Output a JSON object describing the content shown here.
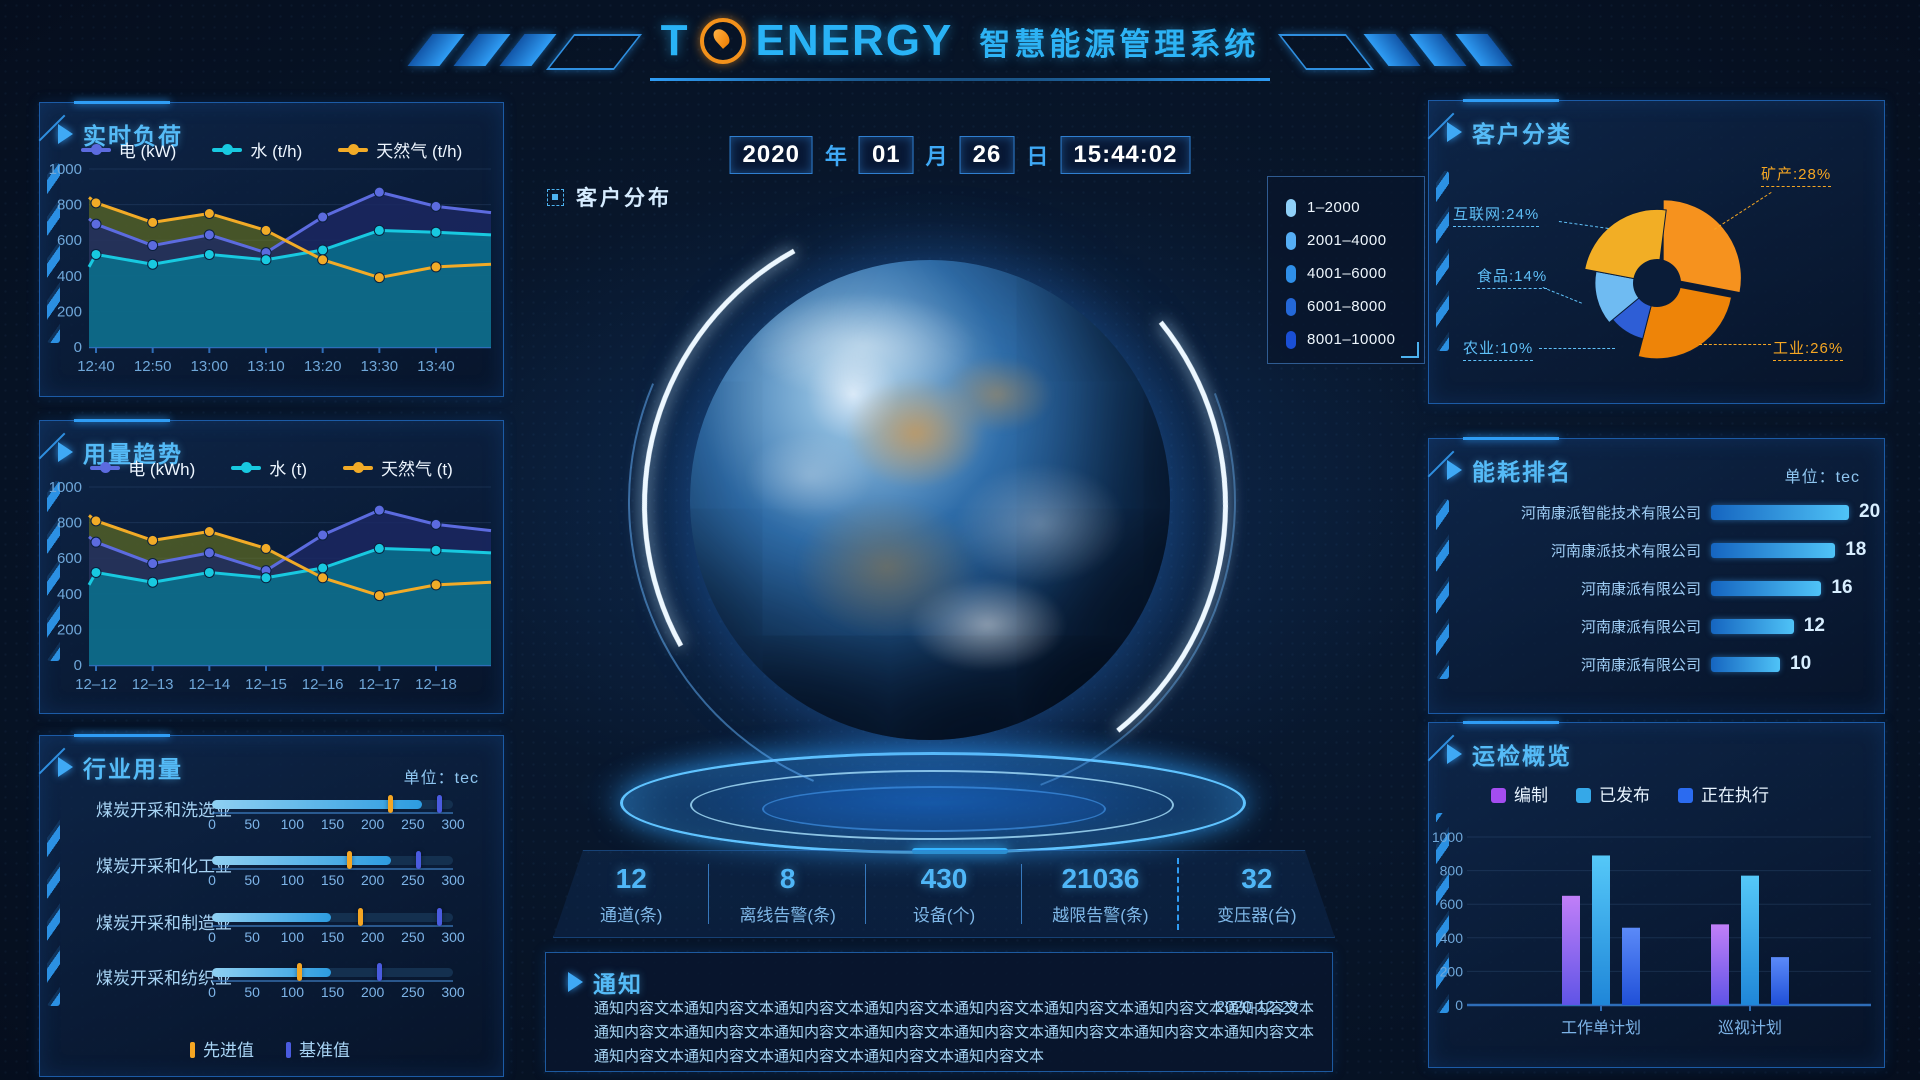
{
  "header": {
    "logo_t": "T",
    "logo_energy": "ENERGY",
    "app_title": "智慧能源管理系统"
  },
  "datetime": {
    "year": "2020",
    "year_unit": "年",
    "month": "01",
    "month_unit": "月",
    "day": "26",
    "day_unit": "日",
    "time": "15:44:02"
  },
  "center": {
    "map_label": "客户分布",
    "globe_legend": [
      {
        "label": "1–2000",
        "color": "#8fd0f8"
      },
      {
        "label": "2001–4000",
        "color": "#55aef5"
      },
      {
        "label": "4001–6000",
        "color": "#2f8fe8"
      },
      {
        "label": "6001–8000",
        "color": "#2468d8"
      },
      {
        "label": "8001–10000",
        "color": "#1a4fd6"
      }
    ],
    "stats": [
      {
        "value": "12",
        "label": "通道(条)"
      },
      {
        "value": "8",
        "label": "离线告警(条)"
      },
      {
        "value": "430",
        "label": "设备(个)"
      },
      {
        "value": "21036",
        "label": "越限告警(条)"
      },
      {
        "value": "32",
        "label": "变压器(台)"
      }
    ],
    "notice": {
      "title": "通知",
      "date": "2020-12-29",
      "lines": [
        "通知内容文本通知内容文本通知内容文本通知内容文本通知内容文本通知内容文本通知内容文本通知内容文本",
        "通知内容文本通知内容文本通知内容文本通知内容文本通知内容文本通知内容文本通知内容文本通知内容文本",
        "通知内容文本通知内容文本通知内容文本通知内容文本通知内容文本"
      ]
    }
  },
  "panels": {
    "realtime": {
      "title": "实时负荷"
    },
    "usage": {
      "title": "用量趋势"
    },
    "industry": {
      "title": "行业用量",
      "unit": "单位：tec"
    },
    "customer": {
      "title": "客户分类"
    },
    "ranking": {
      "title": "能耗排名",
      "unit": "单位：tec"
    },
    "inspection": {
      "title": "运检概览"
    }
  },
  "chart_data": [
    {
      "id": "realtime_load",
      "type": "line",
      "title": "实时负荷",
      "x": [
        "12:40",
        "12:50",
        "13:00",
        "13:10",
        "13:20",
        "13:30",
        "13:40"
      ],
      "ylim": [
        0,
        1000
      ],
      "yticks": [
        0,
        200,
        400,
        600,
        800,
        1000
      ],
      "series": [
        {
          "name": "电 (kW)",
          "color": "#5c6bdf",
          "fill": "rgba(28,40,100,0.80)",
          "edge_start": 720,
          "values": [
            690,
            570,
            630,
            530,
            730,
            870,
            790
          ],
          "edge_end": 755
        },
        {
          "name": "水 (t/h)",
          "color": "#18c9e0",
          "fill": "rgba(8,118,145,0.80)",
          "edge_start": 450,
          "values": [
            520,
            465,
            520,
            490,
            545,
            655,
            645
          ],
          "edge_end": 630
        },
        {
          "name": "天然气 (t/h)",
          "color": "#f2ab27",
          "fill": "rgba(120,130,25,0.55)",
          "edge_start": 840,
          "values": [
            810,
            700,
            750,
            655,
            490,
            390,
            450
          ],
          "edge_end": 465
        }
      ]
    },
    {
      "id": "usage_trend",
      "type": "line",
      "title": "用量趋势",
      "x": [
        "12–12",
        "12–13",
        "12–14",
        "12–15",
        "12–16",
        "12–17",
        "12–18"
      ],
      "ylim": [
        0,
        1000
      ],
      "yticks": [
        0,
        200,
        400,
        600,
        800,
        1000
      ],
      "series": [
        {
          "name": "电 (kWh)",
          "color": "#5c6bdf",
          "fill": "rgba(28,40,100,0.80)",
          "edge_start": 720,
          "values": [
            690,
            570,
            630,
            530,
            730,
            870,
            790
          ],
          "edge_end": 755
        },
        {
          "name": "水 (t)",
          "color": "#18c9e0",
          "fill": "rgba(8,118,145,0.80)",
          "edge_start": 450,
          "values": [
            520,
            465,
            520,
            490,
            545,
            655,
            645
          ],
          "edge_end": 630
        },
        {
          "name": "天然气 (t)",
          "color": "#f2ab27",
          "fill": "rgba(120,130,25,0.55)",
          "edge_start": 840,
          "values": [
            810,
            700,
            750,
            655,
            490,
            390,
            450
          ],
          "edge_end": 465
        }
      ]
    },
    {
      "id": "industry_usage",
      "type": "table",
      "title": "行业用量",
      "unit": "tec",
      "xlim": [
        0,
        300
      ],
      "ticks": [
        0,
        50,
        100,
        150,
        200,
        250,
        300
      ],
      "legend": [
        {
          "name": "先进值",
          "color": "#f5a623"
        },
        {
          "name": "基准值",
          "color": "#4a5bdf"
        }
      ],
      "rows": [
        {
          "label": "煤炭开采和洗选业",
          "value": 262,
          "advanced": 221,
          "base": 283
        },
        {
          "label": "煤炭开采和化工业",
          "value": 223,
          "advanced": 171,
          "base": 257
        },
        {
          "label": "煤炭开采和制造业",
          "value": 148,
          "advanced": 184,
          "base": 283
        },
        {
          "label": "煤炭开采和纺织业",
          "value": 148,
          "advanced": 108,
          "base": 208
        }
      ]
    },
    {
      "id": "customer_pie",
      "type": "pie",
      "title": "客户分类",
      "slices": [
        {
          "name": "矿产",
          "pct": 28,
          "color": "#f6921e",
          "label": "矿产:28%",
          "label_color": "#f5a623",
          "exploded": true
        },
        {
          "name": "工业",
          "pct": 26,
          "color": "#ee8408",
          "label": "工业:26%",
          "label_color": "#f5a623",
          "exploded": false
        },
        {
          "name": "农业",
          "pct": 10,
          "color": "#2e5ed6",
          "label": "农业:10%",
          "label_color": "#5fc0f8",
          "exploded": false
        },
        {
          "name": "食品",
          "pct": 14,
          "color": "#6fbbf2",
          "label": "食品:14%",
          "label_color": "#5fc0f8",
          "exploded": false
        },
        {
          "name": "互联网",
          "pct": 24,
          "color": "#f2ae25",
          "label": "互联网:24%",
          "label_color": "#5fc0f8",
          "exploded": false
        }
      ]
    },
    {
      "id": "energy_ranking",
      "type": "bar",
      "title": "能耗排名",
      "unit": "tec",
      "xmax": 20,
      "rows": [
        {
          "label": "河南康派智能技术有限公司",
          "value": 20
        },
        {
          "label": "河南康派技术有限公司",
          "value": 18
        },
        {
          "label": "河南康派有限公司",
          "value": 16
        },
        {
          "label": "河南康派有限公司",
          "value": 12
        },
        {
          "label": "河南康派有限公司",
          "value": 10
        }
      ]
    },
    {
      "id": "inspection_overview",
      "type": "bar",
      "title": "运检概览",
      "categories": [
        "工作单计划",
        "巡视计划"
      ],
      "ylim": [
        0,
        1000
      ],
      "yticks": [
        0,
        200,
        400,
        600,
        800,
        1000
      ],
      "series": [
        {
          "name": "编制",
          "color": "#a44df0",
          "grad": [
            "#c17ff8",
            "#5f54e6"
          ],
          "values": [
            650,
            480
          ]
        },
        {
          "name": "已发布",
          "color": "#35a8e8",
          "grad": [
            "#55c8f8",
            "#1f86d8"
          ],
          "values": [
            890,
            770
          ]
        },
        {
          "name": "正在执行",
          "color": "#2b6bf0",
          "grad": [
            "#5b8af8",
            "#2050d8"
          ],
          "values": [
            460,
            285
          ]
        }
      ]
    }
  ]
}
